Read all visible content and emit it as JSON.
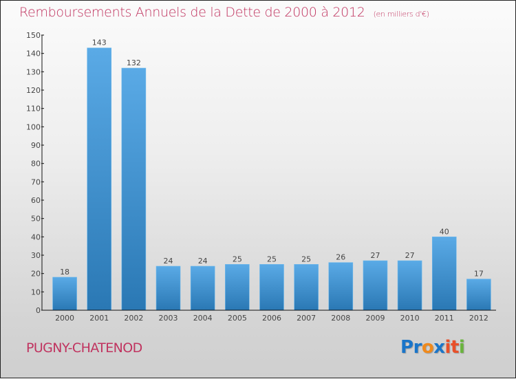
{
  "title": "Remboursements Annuels de la Dette de 2000 à 2012",
  "unit": "(en milliers d'€)",
  "commune": "PUGNY-CHATENOD",
  "logo": {
    "letters": [
      "P",
      "r",
      "o",
      "x",
      "i",
      "t",
      "i"
    ],
    "colors": [
      "#1a75c9",
      "#1a75c9",
      "#f08a1c",
      "#1a75c9",
      "#e8502a",
      "#e8502a",
      "#6ab43e"
    ]
  },
  "colors": {
    "bar_top": "#5aaae6",
    "bar_bottom": "#2a78b4",
    "title": "#c0335f"
  },
  "chart_data": {
    "type": "bar",
    "title": "Remboursements Annuels de la Dette de 2000 à 2012 (en milliers d'€)",
    "xlabel": "",
    "ylabel": "",
    "categories": [
      "2000",
      "2001",
      "2002",
      "2003",
      "2004",
      "2005",
      "2006",
      "2007",
      "2008",
      "2009",
      "2010",
      "2011",
      "2012"
    ],
    "values": [
      18,
      143,
      132,
      24,
      24,
      25,
      25,
      25,
      26,
      27,
      27,
      40,
      17
    ],
    "ylim": [
      0,
      150
    ],
    "yticks": [
      0,
      10,
      20,
      30,
      40,
      50,
      60,
      70,
      80,
      90,
      100,
      110,
      120,
      130,
      140,
      150
    ],
    "grid": false,
    "legend": "none"
  }
}
